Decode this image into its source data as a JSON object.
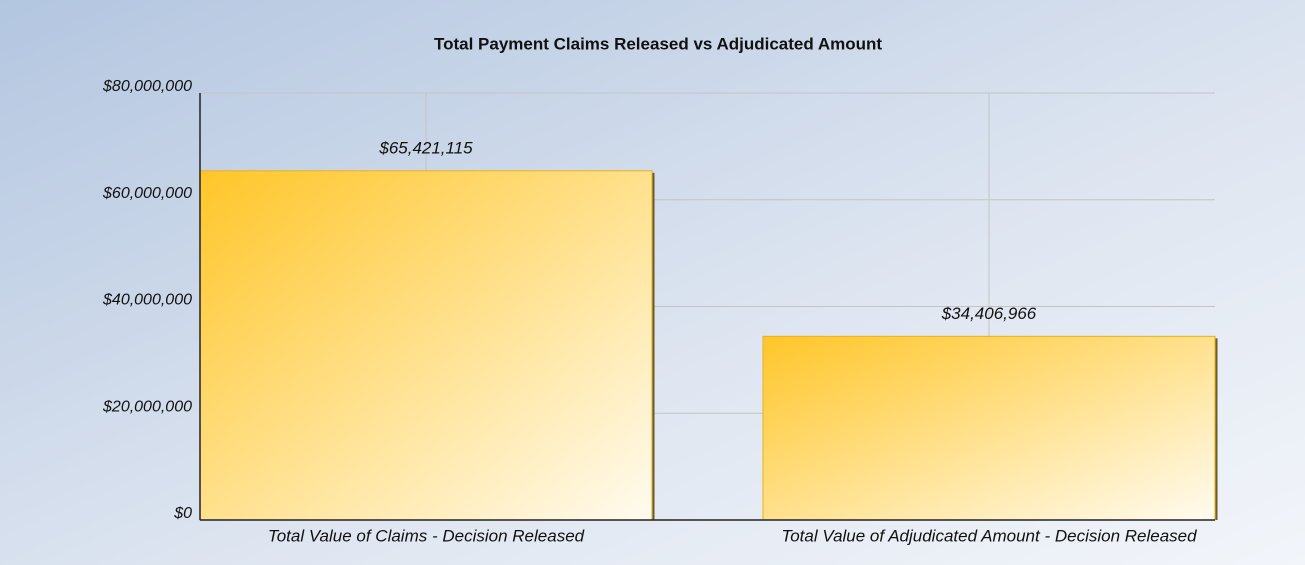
{
  "chart_data": {
    "type": "bar",
    "title": "Total Payment Claims Released vs Adjudicated Amount",
    "categories": [
      "Total Value of Claims - Decision Released",
      "Total Value of Adjudicated Amount - Decision Released"
    ],
    "values": [
      65421115,
      34406966
    ],
    "value_labels": [
      "$65,421,115",
      "$34,406,966"
    ],
    "color": "#ffc629",
    "ylim": [
      0,
      80000000
    ],
    "yticks": [
      {
        "value": 0,
        "label": "$0"
      },
      {
        "value": 20000000,
        "label": "$20,000,000"
      },
      {
        "value": 40000000,
        "label": "$40,000,000"
      },
      {
        "value": 60000000,
        "label": "$60,000,000"
      },
      {
        "value": 80000000,
        "label": "$80,000,000"
      }
    ],
    "grid": true
  }
}
